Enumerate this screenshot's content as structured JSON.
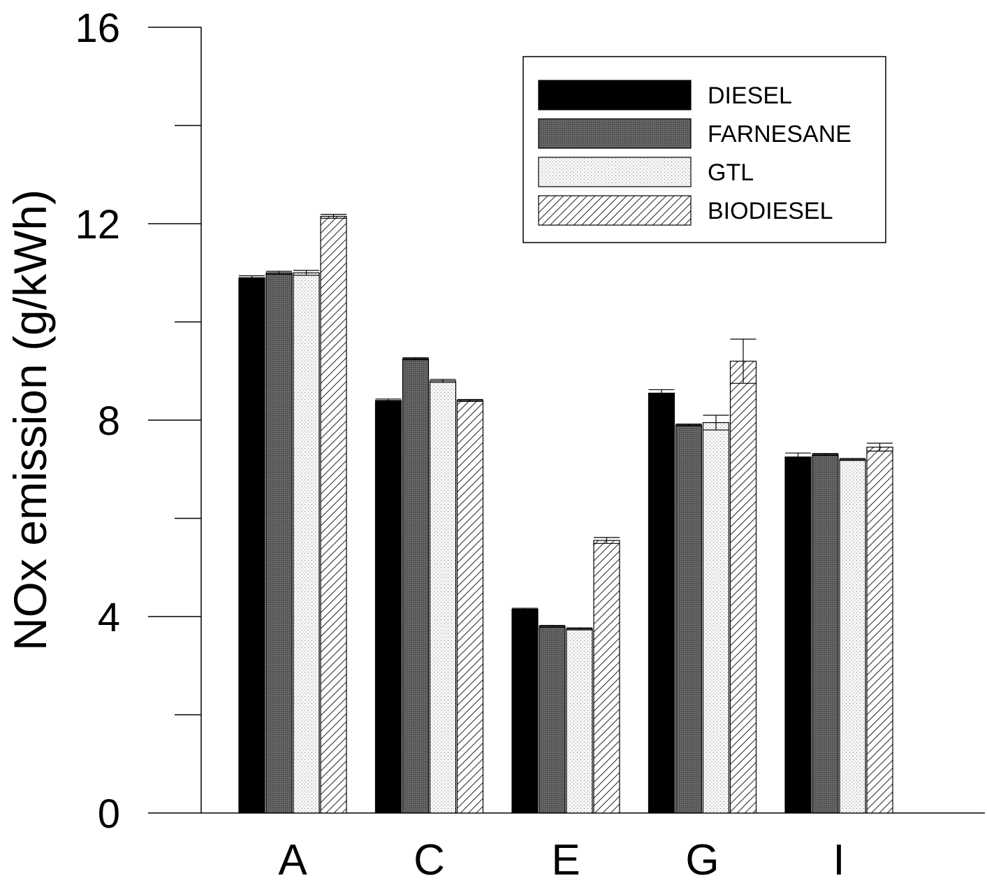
{
  "chart_data": {
    "type": "bar",
    "ylabel": "NOx emission (g/kWh)",
    "xlabel": "",
    "categories": [
      "A",
      "C",
      "E",
      "G",
      "I"
    ],
    "ylim": [
      0,
      16
    ],
    "yticks": [
      0,
      4,
      8,
      12,
      16
    ],
    "yticks_minor": [
      2,
      6,
      10,
      14
    ],
    "grid": false,
    "legend_position": "top-right",
    "series": [
      {
        "name": "DIESEL",
        "values": [
          10.9,
          8.4,
          4.15,
          8.55,
          7.25
        ],
        "errors": [
          0.04,
          0.03,
          0.02,
          0.07,
          0.08
        ],
        "pattern": "solid-black"
      },
      {
        "name": "FARNESANE",
        "values": [
          11.0,
          9.25,
          3.8,
          7.9,
          7.3
        ],
        "errors": [
          0.03,
          0.02,
          0.02,
          0.02,
          0.02
        ],
        "pattern": "crosshatch"
      },
      {
        "name": "GTL",
        "values": [
          11.0,
          8.8,
          3.75,
          7.95,
          7.2
        ],
        "errors": [
          0.05,
          0.03,
          0.02,
          0.15,
          0.02
        ],
        "pattern": "dots"
      },
      {
        "name": "BIODIESEL",
        "values": [
          12.15,
          8.4,
          5.55,
          9.2,
          7.45
        ],
        "errors": [
          0.04,
          0.02,
          0.06,
          0.45,
          0.08
        ],
        "pattern": "diagonal"
      }
    ]
  }
}
